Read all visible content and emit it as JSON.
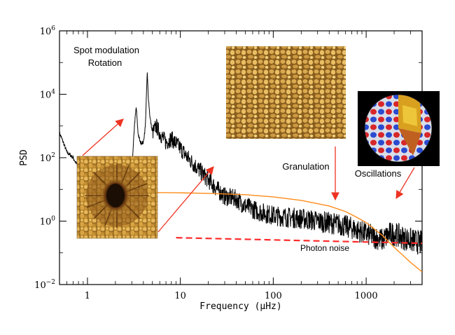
{
  "chart_data": {
    "type": "line",
    "xlabel": "Frequency (μHz)",
    "ylabel": "PSD",
    "xscale": "log",
    "yscale": "log",
    "xlim": [
      0.5,
      4000
    ],
    "ylim": [
      0.01,
      1000000
    ],
    "x_ticks": [
      {
        "value": 1,
        "label": "1"
      },
      {
        "value": 10,
        "label": "10"
      },
      {
        "value": 100,
        "label": "100"
      },
      {
        "value": 1000,
        "label": "1000"
      }
    ],
    "y_ticks": [
      {
        "value": 0.01,
        "base": "10",
        "exp": "−2"
      },
      {
        "value": 1,
        "base": "10",
        "exp": "0"
      },
      {
        "value": 100,
        "base": "10",
        "exp": "2"
      },
      {
        "value": 10000,
        "base": "10",
        "exp": "4"
      },
      {
        "value": 1000000,
        "base": "10",
        "exp": "6"
      }
    ],
    "series": [
      {
        "name": "",
        "style": "line",
        "color": "#000000",
        "x": [
          0.5,
          0.55,
          0.6,
          0.7,
          0.8,
          0.9,
          1.0,
          1.2,
          1.4,
          1.6,
          1.8,
          2.0,
          2.2,
          2.5,
          2.8,
          3.0,
          3.2,
          3.35,
          3.5,
          3.7,
          4.0,
          4.2,
          4.4,
          4.5,
          4.7,
          5.0,
          5.5,
          6.0,
          7.0,
          8.0,
          10,
          12,
          15,
          20,
          25,
          30,
          40,
          50,
          70,
          100,
          150,
          200,
          300,
          500,
          700,
          1000,
          1500,
          1800,
          2000,
          2500,
          3000,
          4000
        ],
        "y": [
          600,
          300,
          150,
          100,
          50,
          30,
          20,
          9,
          5,
          3,
          3.5,
          2.5,
          3,
          5,
          10,
          30,
          1000,
          4000,
          600,
          300,
          300,
          1000,
          50000,
          10000,
          2000,
          600,
          1000,
          600,
          300,
          400,
          200,
          100,
          50,
          20,
          10,
          6,
          5,
          3,
          2,
          1.5,
          1.3,
          1.2,
          1.0,
          0.8,
          0.6,
          0.4,
          0.25,
          0.4,
          0.4,
          0.3,
          0.25,
          0.2
        ]
      },
      {
        "name": "",
        "style": "line",
        "color": "#ff8c1a",
        "x": [
          5,
          10,
          20,
          50,
          100,
          200,
          400,
          600,
          800,
          1000,
          1500,
          2000,
          3000,
          4000
        ],
        "y": [
          8,
          7.8,
          7.5,
          6.8,
          5.8,
          4.5,
          3.0,
          2.0,
          1.3,
          0.9,
          0.35,
          0.15,
          0.05,
          0.025
        ]
      },
      {
        "name": "",
        "style": "dashed",
        "color": "#ff2a2a",
        "x": [
          9,
          4000
        ],
        "y": [
          0.3,
          0.2
        ]
      }
    ],
    "annotations": [
      {
        "id": "spot",
        "text": [
          "Spot modulation",
          "Rotation"
        ],
        "color": "#ee7a22"
      },
      {
        "id": "granulation",
        "text": [
          "Granulation"
        ],
        "color": "#ee7a22"
      },
      {
        "id": "oscillations",
        "text": [
          "Oscillations"
        ],
        "color": "#ee7a22"
      },
      {
        "id": "photon",
        "text": [
          "Photon noise"
        ],
        "color": "#ee2a2a"
      }
    ],
    "insets": [
      {
        "id": "sunspot-image",
        "description": "sunspot"
      },
      {
        "id": "granulation-image",
        "description": "granulation"
      },
      {
        "id": "oscillation-image",
        "description": "oscillations"
      }
    ],
    "grid": false,
    "legend": "none"
  },
  "colors": {
    "arrow": "#ee3322",
    "orange": "#ee7a22",
    "red": "#ff2a2a"
  }
}
